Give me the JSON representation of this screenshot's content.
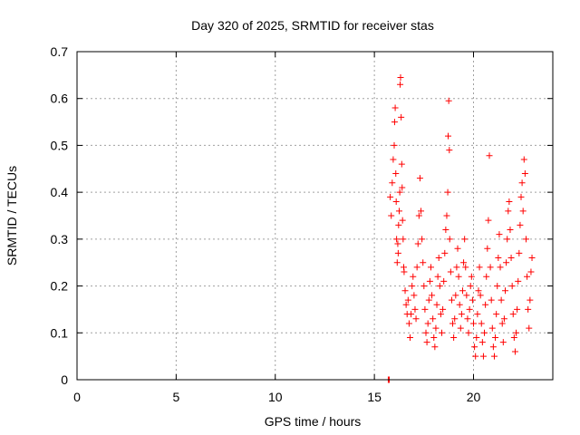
{
  "chart_data": {
    "type": "scatter",
    "title": "Day 320 of 2025, SRMTID for receiver stas",
    "xlabel": "GPS time / hours",
    "ylabel": "SRMTID / TECUs",
    "xlim": [
      0,
      24
    ],
    "ylim": [
      0,
      0.7
    ],
    "x_ticks": [
      0,
      5,
      10,
      15,
      20
    ],
    "y_ticks": [
      0,
      0.1,
      0.2,
      0.3,
      0.4,
      0.5,
      0.6,
      0.7
    ],
    "x_tick_labels": [
      "0",
      "5",
      "10",
      "15",
      "20"
    ],
    "y_tick_labels": [
      "0",
      "0.1",
      "0.2",
      "0.3",
      "0.4",
      "0.5",
      "0.6",
      "0.7"
    ],
    "grid": true,
    "marker": "plus",
    "series": [
      {
        "name": "stas",
        "color": "#ff0000",
        "points": [
          [
            15.7,
            0.0
          ],
          [
            15.75,
            0.0
          ],
          [
            15.8,
            0.39
          ],
          [
            15.85,
            0.35
          ],
          [
            15.9,
            0.42
          ],
          [
            15.95,
            0.47
          ],
          [
            16.0,
            0.5
          ],
          [
            16.02,
            0.55
          ],
          [
            16.05,
            0.58
          ],
          [
            16.08,
            0.44
          ],
          [
            16.1,
            0.38
          ],
          [
            16.12,
            0.3
          ],
          [
            16.15,
            0.25
          ],
          [
            16.18,
            0.29
          ],
          [
            16.2,
            0.27
          ],
          [
            16.22,
            0.33
          ],
          [
            16.25,
            0.36
          ],
          [
            16.28,
            0.4
          ],
          [
            16.3,
            0.63
          ],
          [
            16.32,
            0.645
          ],
          [
            16.35,
            0.56
          ],
          [
            16.38,
            0.46
          ],
          [
            16.4,
            0.41
          ],
          [
            16.42,
            0.34
          ],
          [
            16.45,
            0.3
          ],
          [
            16.48,
            0.24
          ],
          [
            16.5,
            0.23
          ],
          [
            16.55,
            0.19
          ],
          [
            16.6,
            0.16
          ],
          [
            16.65,
            0.14
          ],
          [
            16.7,
            0.17
          ],
          [
            16.75,
            0.12
          ],
          [
            16.8,
            0.09
          ],
          [
            16.85,
            0.14
          ],
          [
            16.9,
            0.2
          ],
          [
            16.95,
            0.22
          ],
          [
            17.0,
            0.18
          ],
          [
            17.05,
            0.15
          ],
          [
            17.1,
            0.13
          ],
          [
            17.15,
            0.24
          ],
          [
            17.2,
            0.29
          ],
          [
            17.25,
            0.35
          ],
          [
            17.3,
            0.43
          ],
          [
            17.35,
            0.36
          ],
          [
            17.4,
            0.3
          ],
          [
            17.45,
            0.25
          ],
          [
            17.5,
            0.2
          ],
          [
            17.55,
            0.15
          ],
          [
            17.6,
            0.1
          ],
          [
            17.65,
            0.08
          ],
          [
            17.7,
            0.12
          ],
          [
            17.75,
            0.17
          ],
          [
            17.8,
            0.21
          ],
          [
            17.85,
            0.24
          ],
          [
            17.9,
            0.18
          ],
          [
            17.95,
            0.13
          ],
          [
            18.0,
            0.09
          ],
          [
            18.05,
            0.07
          ],
          [
            18.1,
            0.11
          ],
          [
            18.15,
            0.16
          ],
          [
            18.2,
            0.22
          ],
          [
            18.25,
            0.26
          ],
          [
            18.3,
            0.2
          ],
          [
            18.35,
            0.14
          ],
          [
            18.4,
            0.1
          ],
          [
            18.45,
            0.15
          ],
          [
            18.5,
            0.21
          ],
          [
            18.55,
            0.27
          ],
          [
            18.6,
            0.32
          ],
          [
            18.65,
            0.35
          ],
          [
            18.7,
            0.4
          ],
          [
            18.72,
            0.52
          ],
          [
            18.75,
            0.595
          ],
          [
            18.78,
            0.49
          ],
          [
            18.8,
            0.3
          ],
          [
            18.85,
            0.23
          ],
          [
            18.9,
            0.17
          ],
          [
            18.95,
            0.12
          ],
          [
            19.0,
            0.09
          ],
          [
            19.05,
            0.13
          ],
          [
            19.1,
            0.18
          ],
          [
            19.15,
            0.24
          ],
          [
            19.2,
            0.28
          ],
          [
            19.25,
            0.22
          ],
          [
            19.3,
            0.16
          ],
          [
            19.35,
            0.11
          ],
          [
            19.4,
            0.14
          ],
          [
            19.45,
            0.19
          ],
          [
            19.5,
            0.25
          ],
          [
            19.55,
            0.3
          ],
          [
            19.6,
            0.24
          ],
          [
            19.65,
            0.18
          ],
          [
            19.7,
            0.13
          ],
          [
            19.75,
            0.1
          ],
          [
            19.8,
            0.15
          ],
          [
            19.85,
            0.2
          ],
          [
            19.9,
            0.22
          ],
          [
            19.95,
            0.17
          ],
          [
            20.0,
            0.12
          ],
          [
            20.05,
            0.07
          ],
          [
            20.1,
            0.05
          ],
          [
            20.15,
            0.09
          ],
          [
            20.2,
            0.14
          ],
          [
            20.25,
            0.19
          ],
          [
            20.3,
            0.24
          ],
          [
            20.35,
            0.18
          ],
          [
            20.4,
            0.12
          ],
          [
            20.45,
            0.08
          ],
          [
            20.5,
            0.05
          ],
          [
            20.55,
            0.1
          ],
          [
            20.6,
            0.16
          ],
          [
            20.65,
            0.22
          ],
          [
            20.7,
            0.28
          ],
          [
            20.75,
            0.34
          ],
          [
            20.8,
            0.478
          ],
          [
            20.85,
            0.24
          ],
          [
            20.9,
            0.17
          ],
          [
            20.95,
            0.11
          ],
          [
            21.0,
            0.07
          ],
          [
            21.05,
            0.05
          ],
          [
            21.1,
            0.09
          ],
          [
            21.15,
            0.14
          ],
          [
            21.2,
            0.2
          ],
          [
            21.25,
            0.26
          ],
          [
            21.3,
            0.31
          ],
          [
            21.35,
            0.24
          ],
          [
            21.4,
            0.17
          ],
          [
            21.45,
            0.12
          ],
          [
            21.5,
            0.08
          ],
          [
            21.55,
            0.13
          ],
          [
            21.6,
            0.19
          ],
          [
            21.65,
            0.25
          ],
          [
            21.7,
            0.3
          ],
          [
            21.75,
            0.36
          ],
          [
            21.8,
            0.38
          ],
          [
            21.85,
            0.32
          ],
          [
            21.9,
            0.26
          ],
          [
            21.95,
            0.2
          ],
          [
            22.0,
            0.14
          ],
          [
            22.05,
            0.09
          ],
          [
            22.1,
            0.06
          ],
          [
            22.15,
            0.1
          ],
          [
            22.2,
            0.15
          ],
          [
            22.25,
            0.21
          ],
          [
            22.3,
            0.27
          ],
          [
            22.35,
            0.33
          ],
          [
            22.4,
            0.39
          ],
          [
            22.45,
            0.42
          ],
          [
            22.5,
            0.36
          ],
          [
            22.55,
            0.47
          ],
          [
            22.6,
            0.44
          ],
          [
            22.65,
            0.3
          ],
          [
            22.7,
            0.22
          ],
          [
            22.75,
            0.15
          ],
          [
            22.8,
            0.11
          ],
          [
            22.85,
            0.17
          ],
          [
            22.9,
            0.23
          ],
          [
            22.95,
            0.26
          ]
        ]
      }
    ]
  }
}
